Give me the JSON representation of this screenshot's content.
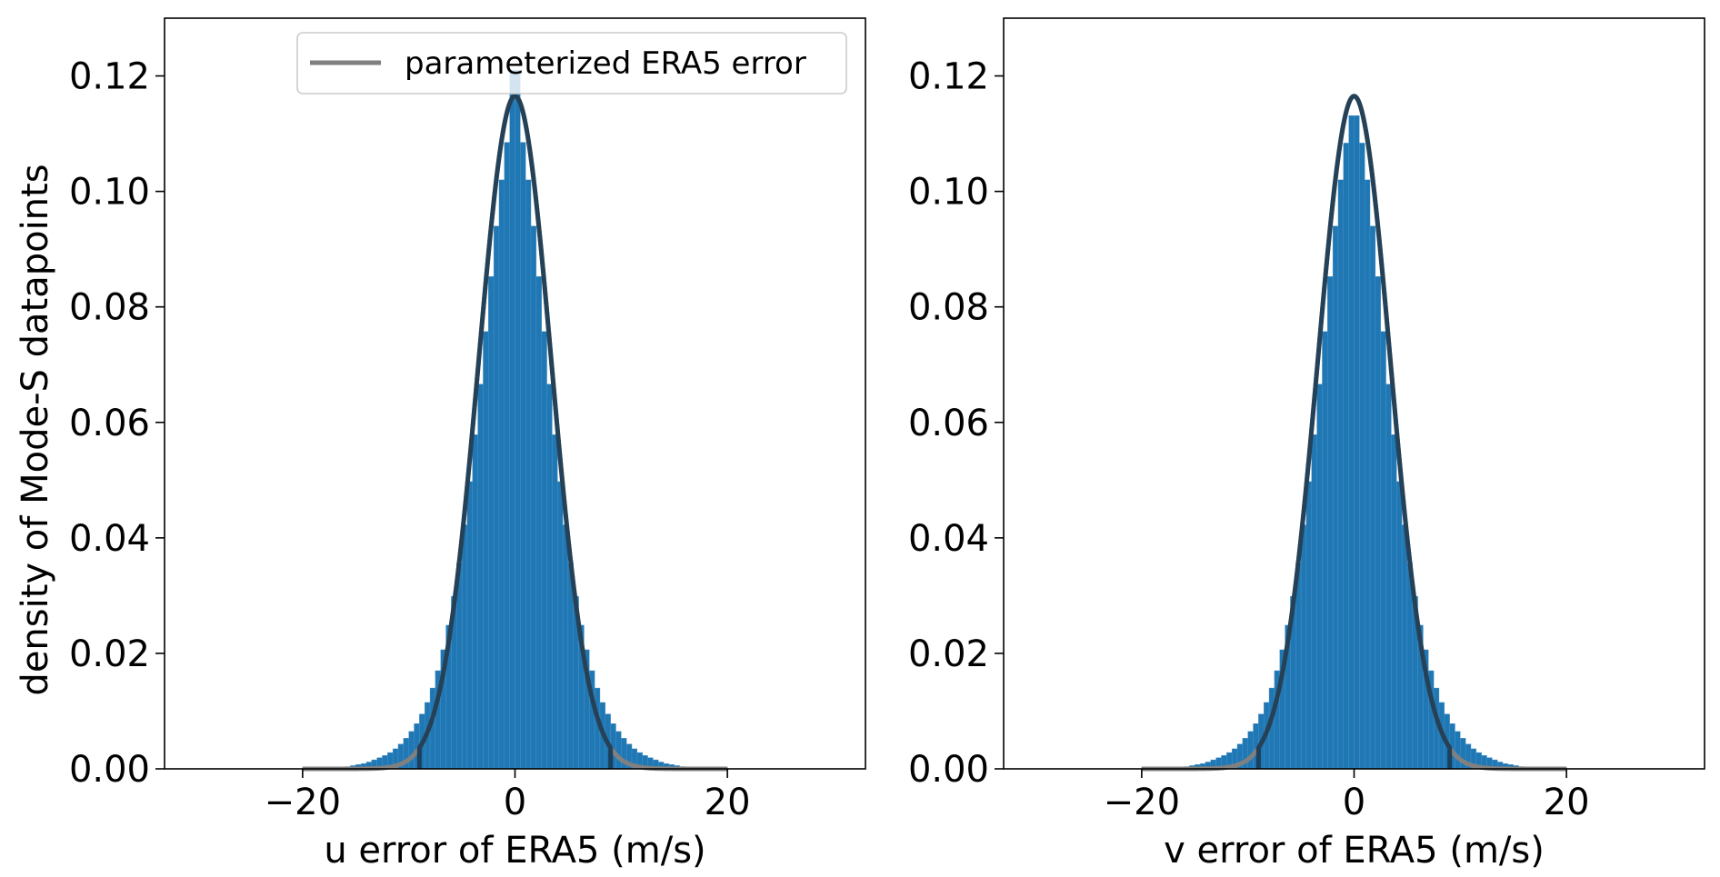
{
  "chart_data": [
    {
      "type": "bar",
      "panel": "left",
      "xlabel": "u error of ERA5 (m/s)",
      "ylabel": "density of Mode-S datapoints",
      "xlim": [
        -33,
        33
      ],
      "ylim": [
        0,
        0.13
      ],
      "xticks": [
        -20,
        0,
        20
      ],
      "xtick_labels": [
        "−20",
        "0",
        "20"
      ],
      "yticks": [
        0,
        0.02,
        0.04,
        0.06,
        0.08,
        0.1,
        0.12
      ],
      "ytick_labels": [
        "0.00",
        "0.02",
        "0.04",
        "0.06",
        "0.08",
        "0.10",
        "0.12"
      ],
      "grid": false,
      "histogram": {
        "color": "#1f77b4",
        "bin_width": 0.5,
        "range": [
          -20,
          20
        ],
        "x": [
          -16,
          -14,
          -12,
          -11,
          -10,
          -9,
          -8,
          -7,
          -6,
          -5,
          -4,
          -3,
          -2,
          -1,
          0,
          1,
          2,
          3,
          4,
          5,
          6,
          7,
          8,
          9,
          10,
          11,
          12,
          14,
          16
        ],
        "density": [
          0.0003,
          0.001,
          0.0025,
          0.0038,
          0.0058,
          0.0085,
          0.0125,
          0.0185,
          0.027,
          0.0385,
          0.0535,
          0.071,
          0.09,
          0.106,
          0.116,
          0.106,
          0.09,
          0.071,
          0.0535,
          0.0385,
          0.027,
          0.0185,
          0.0125,
          0.0085,
          0.0058,
          0.0038,
          0.0025,
          0.001,
          0.0003
        ],
        "peak_bin": {
          "x": 0,
          "density": 0.121
        }
      },
      "fit_curve": {
        "name": "parameterized ERA5 error",
        "color": "#808080",
        "x_range": [
          -20,
          20
        ],
        "mean": 0,
        "sigma": 3.42,
        "peak": 0.1165
      },
      "inner_curve": {
        "color": "#1a3a52",
        "x_range": [
          -9,
          9
        ],
        "mean": 0,
        "sigma": 3.42,
        "peak": 0.1165
      },
      "legend": {
        "location": "upper right",
        "entries": [
          "parameterized ERA5 error"
        ]
      }
    },
    {
      "type": "bar",
      "panel": "right",
      "xlabel": "v error of ERA5 (m/s)",
      "ylabel": "",
      "xlim": [
        -33,
        33
      ],
      "ylim": [
        0,
        0.13
      ],
      "xticks": [
        -20,
        0,
        20
      ],
      "xtick_labels": [
        "−20",
        "0",
        "20"
      ],
      "yticks": [
        0,
        0.02,
        0.04,
        0.06,
        0.08,
        0.1,
        0.12
      ],
      "ytick_labels": [
        "0.00",
        "0.02",
        "0.04",
        "0.06",
        "0.08",
        "0.10",
        "0.12"
      ],
      "grid": false,
      "histogram": {
        "color": "#1f77b4",
        "bin_width": 0.5,
        "range": [
          -20,
          20
        ],
        "x": [
          -16,
          -14,
          -12,
          -11,
          -10,
          -9,
          -8,
          -7,
          -6,
          -5,
          -4,
          -3,
          -2,
          -1,
          0,
          1,
          2,
          3,
          4,
          5,
          6,
          7,
          8,
          9,
          10,
          11,
          12,
          14,
          16
        ],
        "density": [
          0.0003,
          0.001,
          0.0025,
          0.0038,
          0.0058,
          0.0085,
          0.0125,
          0.0185,
          0.027,
          0.0385,
          0.0535,
          0.071,
          0.09,
          0.106,
          0.1155,
          0.106,
          0.09,
          0.071,
          0.0535,
          0.0385,
          0.027,
          0.0185,
          0.0125,
          0.0085,
          0.0058,
          0.0038,
          0.0025,
          0.001,
          0.0003
        ]
      },
      "fit_curve": {
        "color": "#808080",
        "x_range": [
          -20,
          20
        ],
        "mean": 0,
        "sigma": 3.42,
        "peak": 0.1165
      },
      "inner_curve": {
        "color": "#1a3a52",
        "x_range": [
          -9,
          9
        ],
        "mean": 0,
        "sigma": 3.42,
        "peak": 0.1165
      }
    }
  ]
}
